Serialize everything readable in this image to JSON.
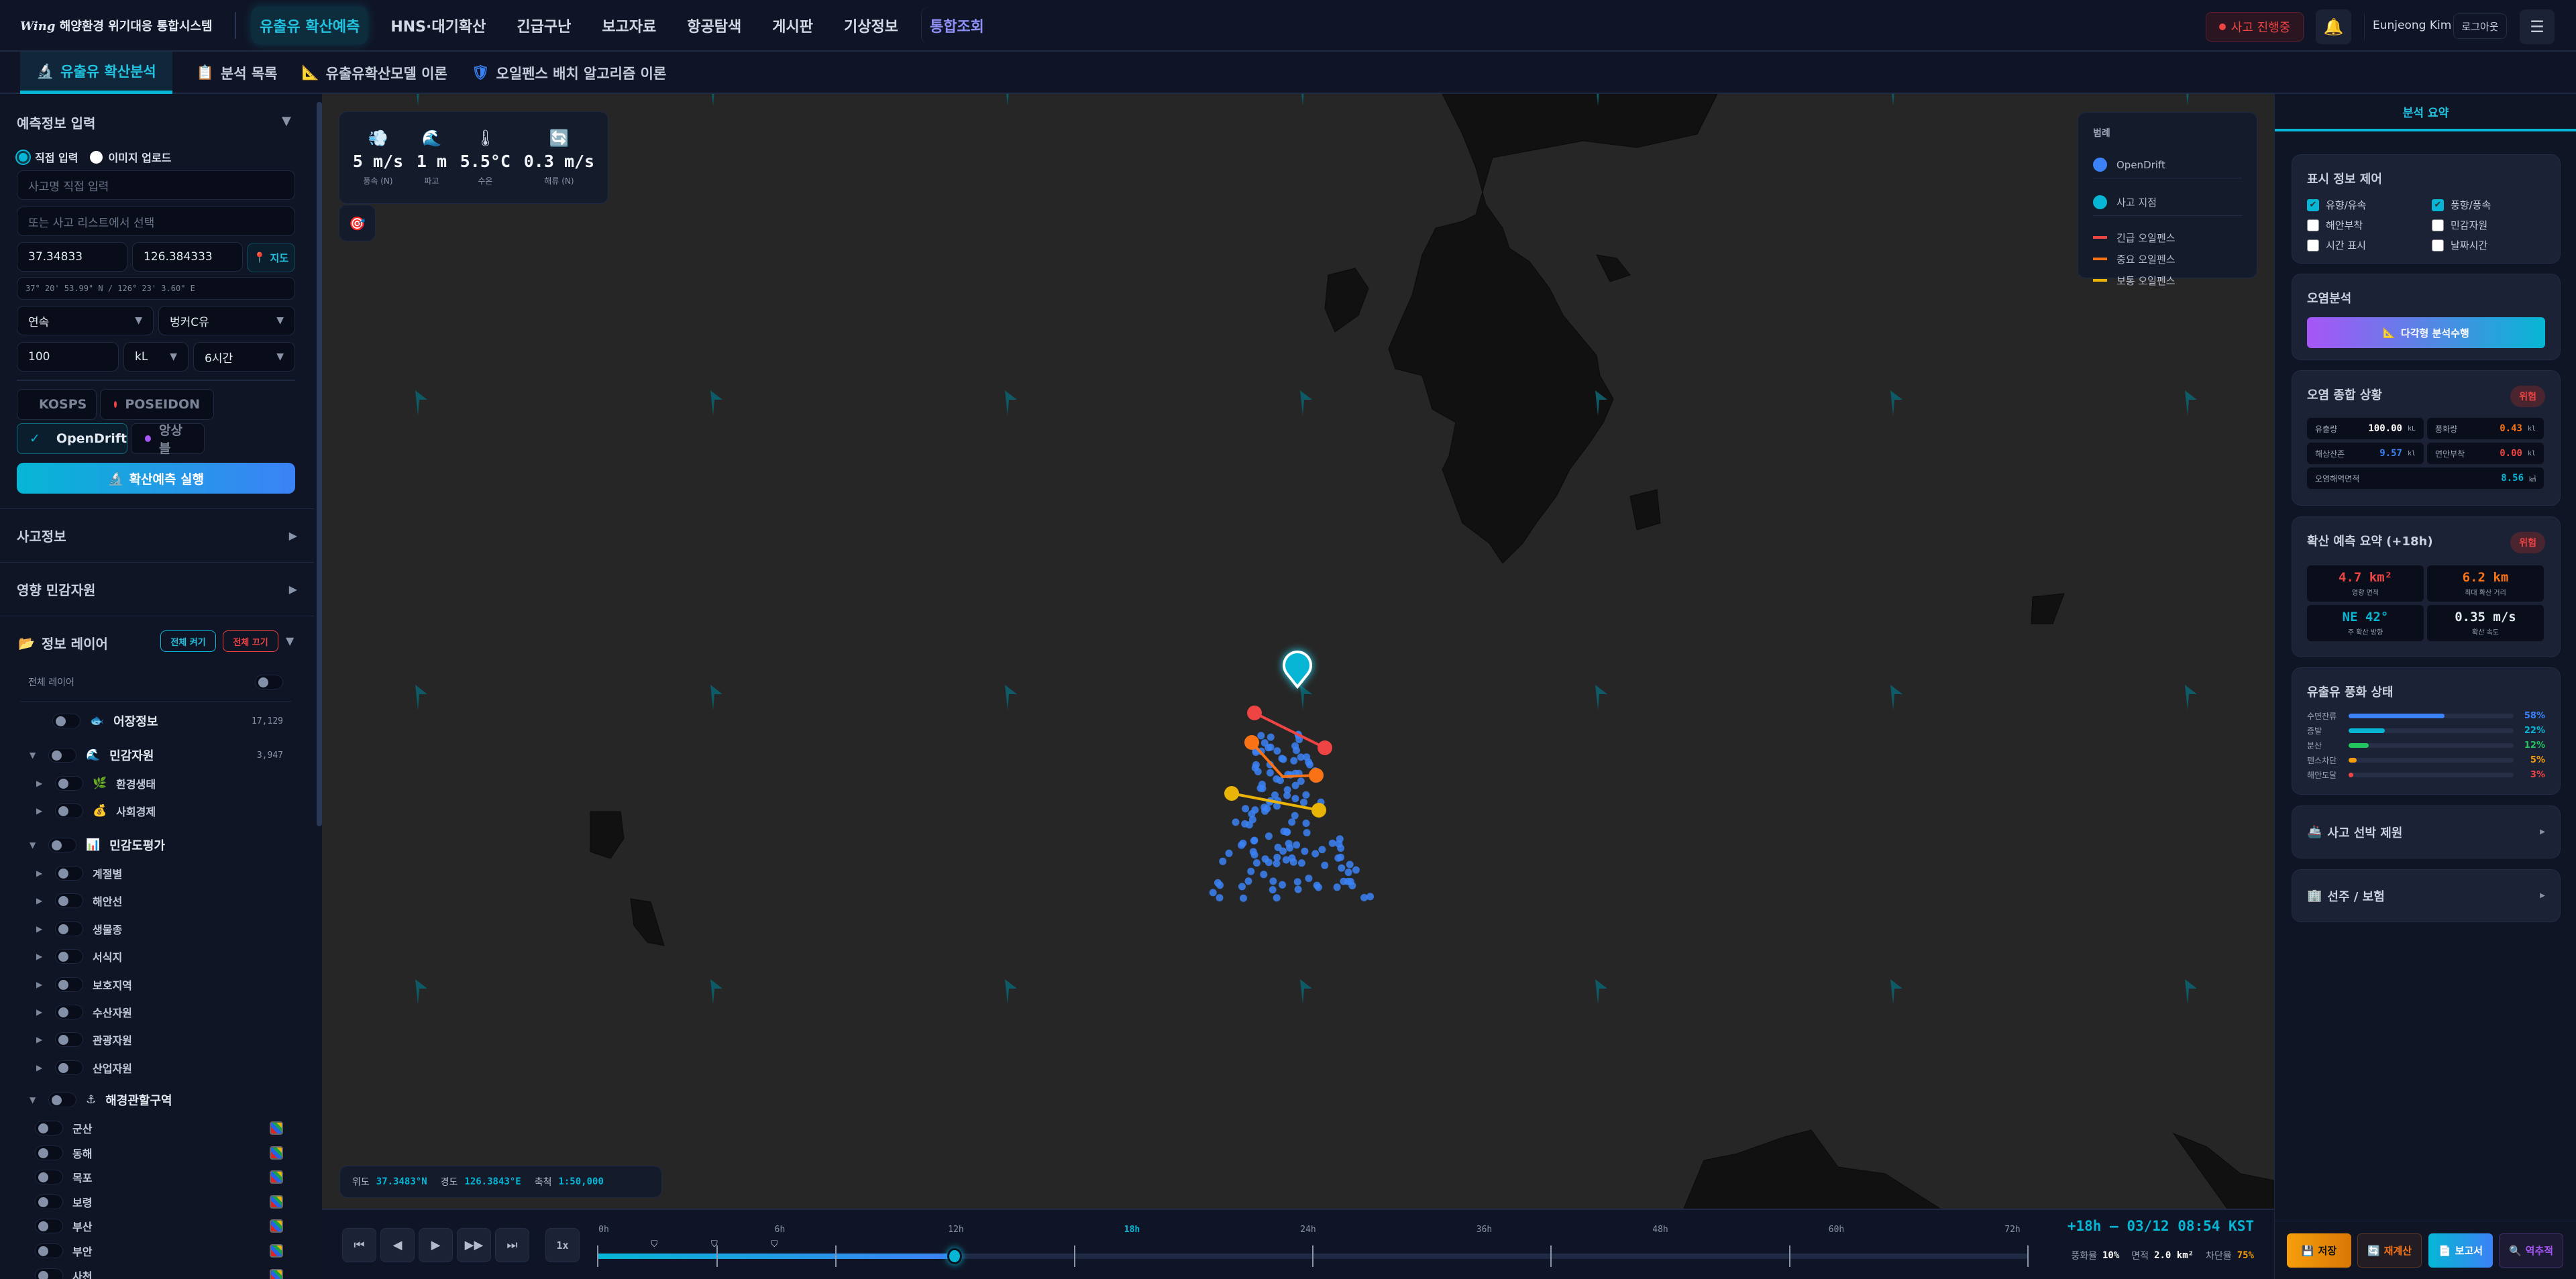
{
  "header": {
    "logo_brand": "Wing",
    "app_title": "해양환경 위기대응 통합시스템",
    "nav": [
      "유출유 확산예측",
      "HNS·대기확산",
      "긴급구난",
      "보고자료",
      "항공탐색",
      "게시판",
      "기상정보",
      "통합조회"
    ],
    "incident_status": "사고 진행중",
    "user_name": "Eunjeong Kim",
    "logout": "로그아웃"
  },
  "subtabs": [
    "유출유 확산분석",
    "분석 목록",
    "유출유확산모델 이론",
    "오일펜스 배치 알고리즘 이론"
  ],
  "left": {
    "input_title": "예측정보 입력",
    "radio_direct": "직접 입력",
    "radio_image": "이미지 업로드",
    "incident_name_placeholder": "사고명 직접 입력",
    "incident_select_placeholder": "또는 사고 리스트에서 선택",
    "lat": "37.34833",
    "lon": "126.384333",
    "map_button": "지도",
    "dms": "37° 20' 53.99\" N / 126° 23' 3.60\" E",
    "release_type": "연속",
    "oil_type": "벙커C유",
    "amount": "100",
    "unit": "kL",
    "duration": "6시간",
    "models": [
      {
        "label": "KOSPS",
        "color": "#06b6d4",
        "selected": false
      },
      {
        "label": "POSEIDON",
        "color": "#ef4444",
        "selected": false
      },
      {
        "label": "OpenDrift",
        "color": "#3b82f6",
        "selected": true
      },
      {
        "label": "앙상블",
        "color": "#a855f7",
        "selected": false
      }
    ],
    "run_button": "확산예측 실행",
    "section_incident": "사고정보",
    "section_sensitive": "영향 민감자원",
    "layers_title": "정보 레이어",
    "all_on": "전체 켜기",
    "all_off": "전체 끄기",
    "all_layers": "전체 레이어",
    "layer_fishery": "어장정보",
    "layer_fishery_count": "17,129",
    "layer_sensitive": "민감자원",
    "layer_sensitive_count": "3,947",
    "layer_sensitive_children": [
      "환경생태",
      "사회경제"
    ],
    "layer_sensitivity": "민감도평가",
    "layer_sensitivity_children": [
      "계절별",
      "해안선",
      "생물종",
      "서식지",
      "보호지역",
      "수산자원",
      "관광자원",
      "산업자원"
    ],
    "layer_coastguard": "해경관할구역",
    "coastguard_children": [
      "군산",
      "동해",
      "목포",
      "보령",
      "부산",
      "부안",
      "사천"
    ]
  },
  "map": {
    "weather": [
      {
        "icon": "wind-icon",
        "value": "5 m/s",
        "label": "풍속 (N)"
      },
      {
        "icon": "wave-icon",
        "value": "1 m",
        "label": "파고"
      },
      {
        "icon": "thermometer-icon",
        "value": "5.5°C",
        "label": "수온"
      },
      {
        "icon": "current-icon",
        "value": "0.3 m/s",
        "label": "해류 (N)"
      }
    ],
    "legend": {
      "title": "범례",
      "items": [
        {
          "label": "OpenDrift",
          "color": "#3b82f6",
          "shape": "dot"
        },
        {
          "label": "사고 지점",
          "color": "#06b6d4",
          "shape": "dot"
        },
        {
          "label": "긴급 오일펜스",
          "color": "#ef4444",
          "shape": "line"
        },
        {
          "label": "중요 오일펜스",
          "color": "#f97316",
          "shape": "line"
        },
        {
          "label": "보통 오일펜스",
          "color": "#eab308",
          "shape": "line"
        }
      ]
    },
    "coords": {
      "lat_label": "위도",
      "lat": "37.3483°N",
      "lon_label": "경도",
      "lon": "126.3843°E",
      "scale_label": "축척",
      "scale": "1:50,000"
    }
  },
  "timeline": {
    "speed": "1x",
    "labels": [
      "0h",
      "6h",
      "12h",
      "18h",
      "24h",
      "36h",
      "48h",
      "60h",
      "72h"
    ],
    "active_label": "18h",
    "progress_fraction": 0.25,
    "current_time": "+18h — 03/12 08:54 KST",
    "weathering_label": "풍화율",
    "weathering": "10%",
    "area_label": "면적",
    "area": "2.0 km²",
    "block_label": "차단율",
    "block": "75%"
  },
  "right": {
    "tab": "분석 요약",
    "display_title": "표시 정보 제어",
    "checks": [
      {
        "label": "유향/유속",
        "checked": true
      },
      {
        "label": "풍향/풍속",
        "checked": true
      },
      {
        "label": "해안부착",
        "checked": false
      },
      {
        "label": "민감자원",
        "checked": false
      },
      {
        "label": "시간 표시",
        "checked": false
      },
      {
        "label": "날짜시간",
        "checked": false
      }
    ],
    "pollution_title": "오염분석",
    "polygon_button": "다각형 분석수행",
    "overall_title": "오염 종합 상황",
    "overall_badge": "위험",
    "stats": {
      "spill": {
        "label": "유출량",
        "value": "100.00",
        "unit": "kL"
      },
      "weathered": {
        "label": "풍화량",
        "value": "0.43",
        "unit": "kl"
      },
      "remaining": {
        "label": "해상잔존",
        "value": "9.57",
        "unit": "kl"
      },
      "shore": {
        "label": "연안부착",
        "value": "0.00",
        "unit": "kl"
      },
      "area": {
        "label": "오염해역면적",
        "value": "8.56",
        "unit": "㎢"
      }
    },
    "forecast_title": "확산 예측 요약 (+18h)",
    "forecast_badge": "위험",
    "forecast": [
      {
        "value": "4.7 km²",
        "label": "영향 면적",
        "color": "#ef4444"
      },
      {
        "value": "6.2 km",
        "label": "최대 확산 거리",
        "color": "#f97316"
      },
      {
        "value": "NE 42°",
        "label": "주 확산 방향",
        "color": "#06b6d4"
      },
      {
        "value": "0.35 m/s",
        "label": "확산 속도",
        "color": "#e2e8f0"
      }
    ],
    "weathering_title": "유출유 풍화 상태",
    "weathering": [
      {
        "label": "수면잔류",
        "pct": 58,
        "text": "58%",
        "color": "#3b82f6"
      },
      {
        "label": "증발",
        "pct": 22,
        "text": "22%",
        "color": "#06b6d4"
      },
      {
        "label": "분산",
        "pct": 12,
        "text": "12%",
        "color": "#22c55e"
      },
      {
        "label": "펜스차단",
        "pct": 5,
        "text": "5%",
        "color": "#f59e0b"
      },
      {
        "label": "해안도달",
        "pct": 3,
        "text": "3%",
        "color": "#ef4444"
      }
    ],
    "vessel_title": "사고 선박 제원",
    "owner_title": "선주 / 보험",
    "buttons": {
      "save": "저장",
      "recalc": "재계산",
      "report": "보고서",
      "backtrack": "역추적"
    }
  }
}
